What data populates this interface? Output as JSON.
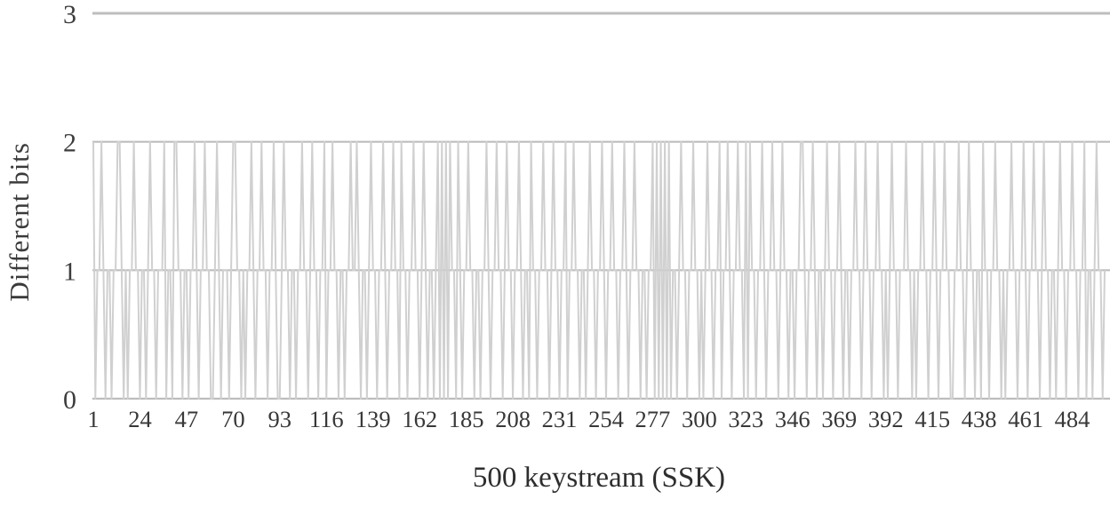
{
  "figure": {
    "background": "#ffffff"
  },
  "chart_data": {
    "type": "line",
    "title": "",
    "xlabel": "500 keystream (SSK)",
    "ylabel": "Different bits",
    "x_range": [
      1,
      500
    ],
    "x_tick_labels": [
      1,
      24,
      47,
      70,
      93,
      116,
      139,
      162,
      185,
      208,
      231,
      254,
      277,
      300,
      323,
      346,
      369,
      392,
      415,
      438,
      461,
      484
    ],
    "y_ticks": [
      0,
      1,
      2,
      3
    ],
    "ylim": [
      0,
      3
    ],
    "grid": "horizontal-major",
    "legend_position": "none",
    "line_color": "#d0d0d0",
    "gridline_color": "#bdbdbd",
    "tick_text_color": "#3c3c3c",
    "series": [
      {
        "values": [
          2,
          0,
          1,
          1,
          2,
          1,
          0,
          1,
          1,
          0,
          1,
          1,
          2,
          2,
          1,
          0,
          1,
          0,
          1,
          1,
          2,
          1,
          1,
          0,
          1,
          1,
          0,
          1,
          2,
          1,
          1,
          0,
          1,
          1,
          1,
          2,
          0,
          1,
          1,
          0,
          2,
          2,
          1,
          1,
          0,
          1,
          1,
          0,
          1,
          1,
          2,
          1,
          0,
          1,
          1,
          2,
          1,
          1,
          0,
          0,
          1,
          2,
          1,
          0,
          1,
          1,
          1,
          0,
          1,
          2,
          2,
          1,
          1,
          0,
          1,
          0,
          1,
          1,
          2,
          1,
          0,
          1,
          1,
          2,
          1,
          1,
          0,
          1,
          1,
          2,
          1,
          0,
          0,
          1,
          2,
          1,
          1,
          0,
          1,
          1,
          0,
          1,
          1,
          2,
          1,
          1,
          0,
          1,
          2,
          1,
          1,
          0,
          1,
          1,
          2,
          0,
          1,
          1,
          2,
          1,
          1,
          0,
          1,
          1,
          0,
          1,
          1,
          2,
          1,
          1,
          2,
          1,
          0,
          1,
          1,
          0,
          1,
          2,
          1,
          1,
          0,
          1,
          1,
          2,
          1,
          0,
          1,
          1,
          2,
          1,
          1,
          0,
          2,
          1,
          1,
          0,
          1,
          1,
          2,
          1,
          1,
          0,
          1,
          2,
          1,
          0,
          1,
          1,
          0,
          1,
          2,
          0,
          2,
          0,
          2,
          0,
          2,
          1,
          1,
          0,
          2,
          1,
          0,
          1,
          1,
          2,
          1,
          1,
          0,
          1,
          1,
          0,
          1,
          1,
          2,
          1,
          0,
          1,
          1,
          2,
          1,
          1,
          0,
          1,
          2,
          1,
          1,
          0,
          1,
          1,
          2,
          1,
          0,
          1,
          1,
          0,
          2,
          1,
          1,
          0,
          1,
          1,
          2,
          1,
          1,
          0,
          1,
          2,
          1,
          1,
          0,
          1,
          1,
          2,
          0,
          1,
          1,
          2,
          1,
          1,
          0,
          1,
          1,
          0,
          1,
          2,
          1,
          1,
          0,
          1,
          1,
          2,
          1,
          0,
          1,
          1,
          2,
          1,
          1,
          0,
          1,
          1,
          2,
          1,
          0,
          1,
          1,
          2,
          1,
          1,
          0,
          1,
          1,
          0,
          1,
          1,
          2,
          0,
          2,
          0,
          2,
          0,
          2,
          0,
          2,
          0,
          1,
          1,
          0,
          1,
          2,
          1,
          1,
          0,
          1,
          1,
          2,
          1,
          1,
          0,
          1,
          0,
          1,
          2,
          1,
          1,
          0,
          1,
          1,
          2,
          0,
          1,
          1,
          2,
          1,
          0,
          1,
          1,
          2,
          1,
          1,
          0,
          2,
          0,
          2,
          1,
          1,
          0,
          1,
          1,
          2,
          1,
          0,
          1,
          1,
          2,
          1,
          1,
          0,
          1,
          2,
          1,
          1,
          0,
          1,
          1,
          0,
          1,
          1,
          2,
          2,
          1,
          0,
          1,
          1,
          2,
          1,
          0,
          1,
          1,
          0,
          1,
          2,
          1,
          1,
          0,
          1,
          1,
          2,
          1,
          0,
          1,
          1,
          0,
          1,
          1,
          2,
          1,
          1,
          0,
          1,
          2,
          1,
          1,
          0,
          1,
          1,
          2,
          1,
          1,
          0,
          1,
          0,
          1,
          2,
          1,
          1,
          0,
          1,
          1,
          1,
          2,
          1,
          1,
          0,
          1,
          0,
          1,
          1,
          2,
          1,
          1,
          0,
          1,
          1,
          2,
          1,
          0,
          1,
          1,
          2,
          1,
          1,
          0,
          0,
          1,
          1,
          2,
          1,
          1,
          0,
          1,
          2,
          1,
          1,
          0,
          1,
          1,
          0,
          2,
          1,
          1,
          0,
          1,
          1,
          2,
          1,
          1,
          0,
          1,
          0,
          1,
          1,
          2,
          1,
          1,
          0,
          1,
          1,
          2,
          1,
          0,
          1,
          1,
          2,
          1,
          1,
          0,
          1,
          2,
          1,
          1,
          0,
          1,
          1,
          0,
          1,
          2,
          1,
          1,
          0,
          1,
          1,
          2,
          1,
          1,
          0,
          1,
          1,
          2,
          0,
          1,
          1,
          0,
          1,
          2,
          1,
          1,
          0,
          1
        ]
      }
    ]
  }
}
